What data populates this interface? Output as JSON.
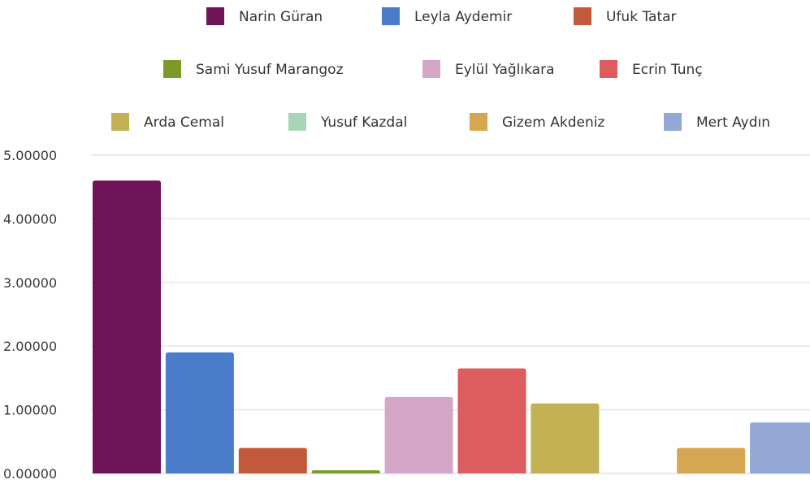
{
  "chart_data": {
    "type": "bar",
    "title": "",
    "xlabel": "",
    "ylabel": "",
    "ylim": [
      0,
      5
    ],
    "y_ticks": [
      {
        "value": 0,
        "label": "0.00000"
      },
      {
        "value": 1,
        "label": "1.00000"
      },
      {
        "value": 2,
        "label": "2.00000"
      },
      {
        "value": 3,
        "label": "3.00000"
      },
      {
        "value": 4,
        "label": "4.00000"
      },
      {
        "value": 5,
        "label": "5.00000"
      }
    ],
    "grid": true,
    "legend_position": "top",
    "series": [
      {
        "name": "Narin Güran",
        "value": 4.6,
        "color": "#701458"
      },
      {
        "name": "Leyla Aydemir",
        "value": 1.9,
        "color": "#4a7cc9"
      },
      {
        "name": "Ufuk Tatar",
        "value": 0.4,
        "color": "#c2593a"
      },
      {
        "name": "Sami Yusuf Marangoz",
        "value": 0.05,
        "color": "#7c9a2a"
      },
      {
        "name": "Eylül Yağlıkara",
        "value": 1.2,
        "color": "#d4a6c8"
      },
      {
        "name": "Ecrin Tunç",
        "value": 1.65,
        "color": "#dd5c5f"
      },
      {
        "name": "Arda Cemal",
        "value": 1.1,
        "color": "#c4b153"
      },
      {
        "name": "Yusuf Kazdal",
        "value": 0.0,
        "color": "#a8d4b8"
      },
      {
        "name": "Gizem Akdeniz",
        "value": 0.4,
        "color": "#d6a653"
      },
      {
        "name": "Mert Aydın",
        "value": 0.8,
        "color": "#94a8d6"
      }
    ]
  }
}
